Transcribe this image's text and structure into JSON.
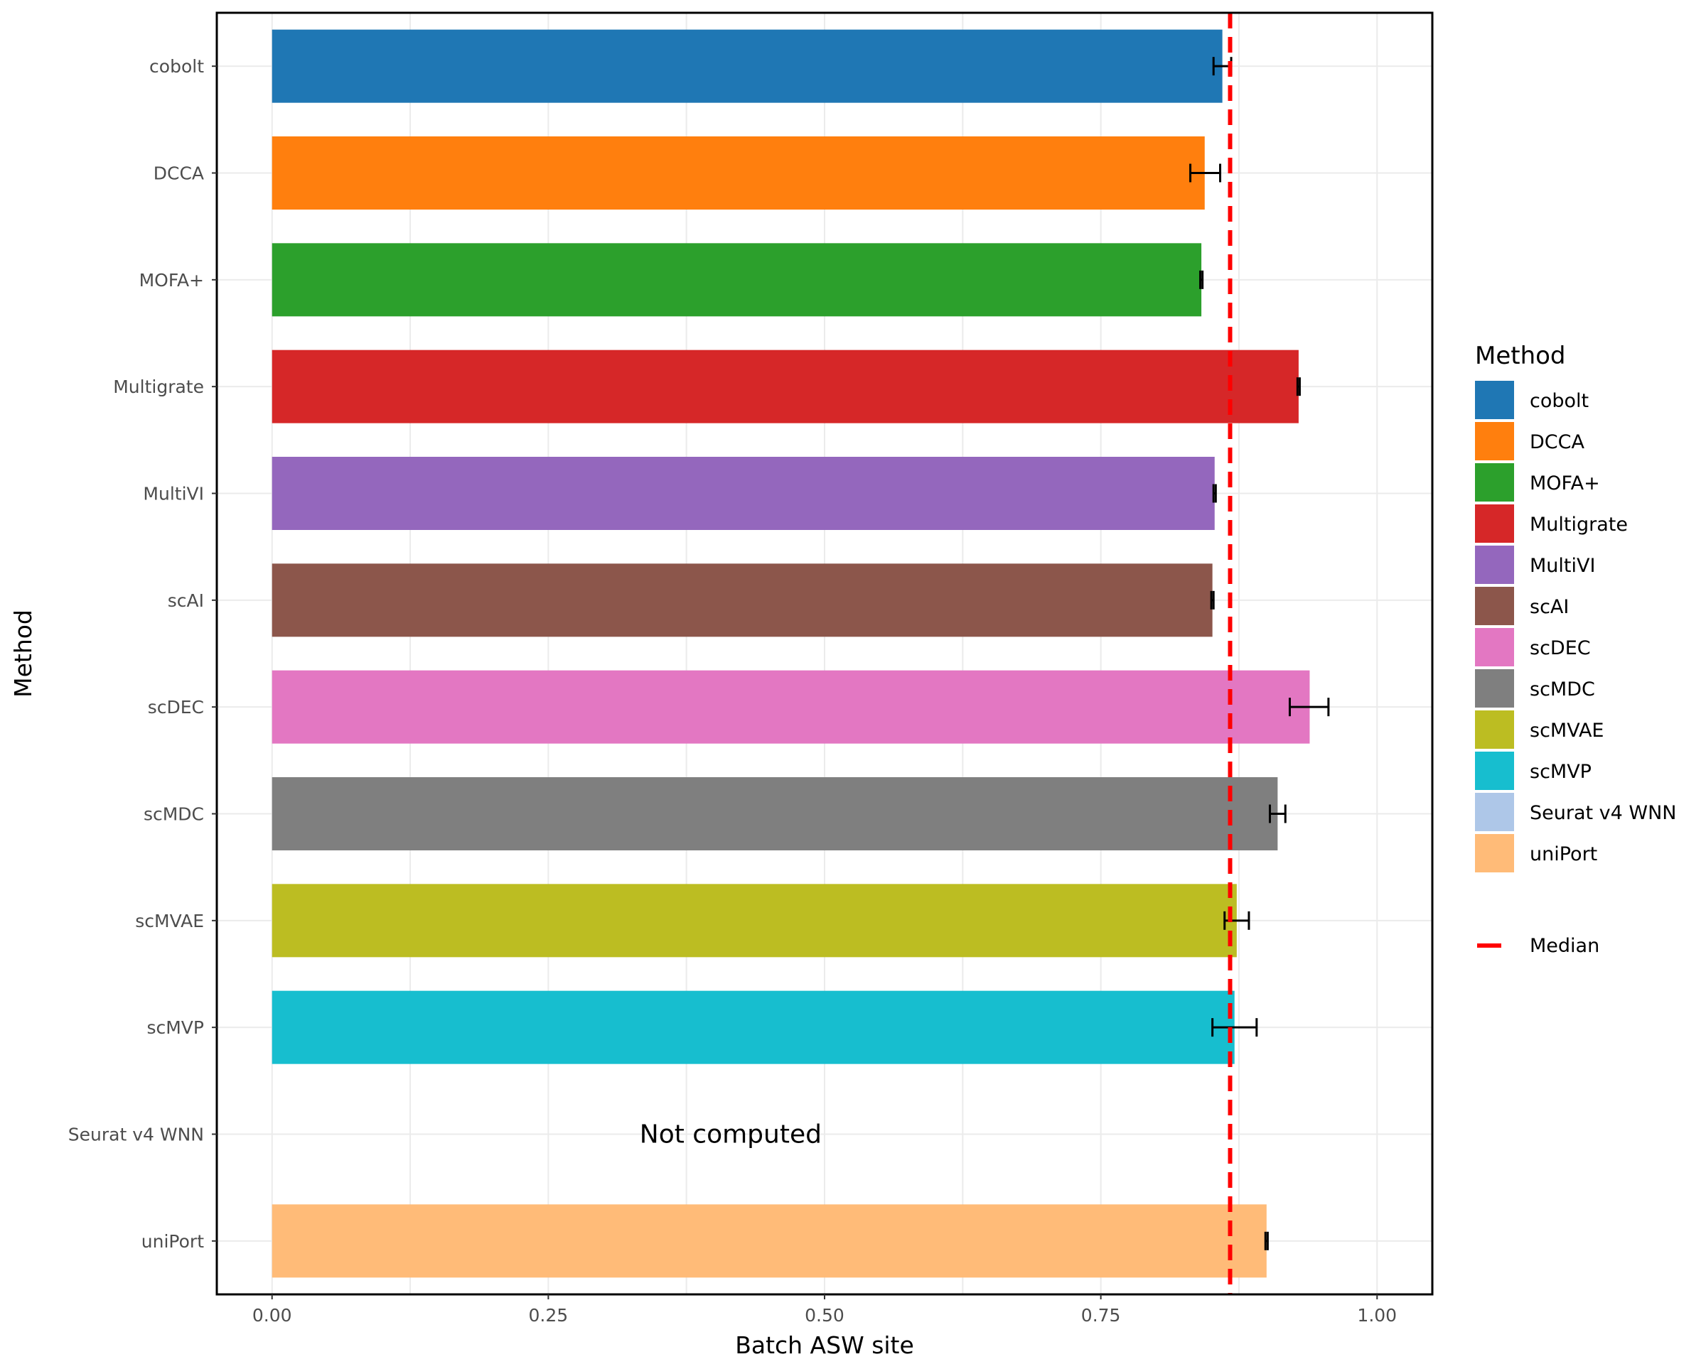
{
  "chart_data": {
    "type": "bar",
    "orientation": "horizontal",
    "title": "",
    "xlabel": "Batch ASW site",
    "ylabel": "Method",
    "xlim": [
      -0.05,
      1.05
    ],
    "x_ticks": [
      0.0,
      0.25,
      0.5,
      0.75,
      1.0
    ],
    "x_tick_labels": [
      "0.00",
      "0.25",
      "0.50",
      "0.75",
      "1.00"
    ],
    "grid": true,
    "categories": [
      "cobolt",
      "DCCA",
      "MOFA+",
      "Multigrate",
      "MultiVI",
      "scAI",
      "scDEC",
      "scMDC",
      "scMVAE",
      "scMVP",
      "Seurat v4 WNN",
      "uniPort"
    ],
    "values": [
      0.86,
      0.844,
      0.841,
      0.929,
      0.853,
      0.851,
      0.939,
      0.91,
      0.873,
      0.871,
      null,
      0.9
    ],
    "error_low": [
      0.852,
      0.831,
      0.84,
      0.928,
      0.852,
      0.85,
      0.921,
      0.903,
      0.862,
      0.851,
      null,
      0.899
    ],
    "error_high": [
      0.868,
      0.858,
      0.842,
      0.93,
      0.854,
      0.852,
      0.956,
      0.917,
      0.884,
      0.891,
      null,
      0.901
    ],
    "colors": [
      "#1f77b4",
      "#ff7f0e",
      "#2ca02c",
      "#d62728",
      "#9467bd",
      "#8c564b",
      "#e377c2",
      "#7f7f7f",
      "#bcbd22",
      "#17becf",
      "#aec7e8",
      "#ffbb78"
    ],
    "median": 0.867,
    "median_color": "#ff0000",
    "annotation": {
      "text": "Not computed",
      "category": "Seurat v4 WNN",
      "x": 0.415
    },
    "legend": {
      "title": "Method",
      "position": "right",
      "entries": [
        "cobolt",
        "DCCA",
        "MOFA+",
        "Multigrate",
        "MultiVI",
        "scAI",
        "scDEC",
        "scMDC",
        "scMVAE",
        "scMVP",
        "Seurat v4 WNN",
        "uniPort"
      ],
      "median_label": "Median"
    }
  }
}
